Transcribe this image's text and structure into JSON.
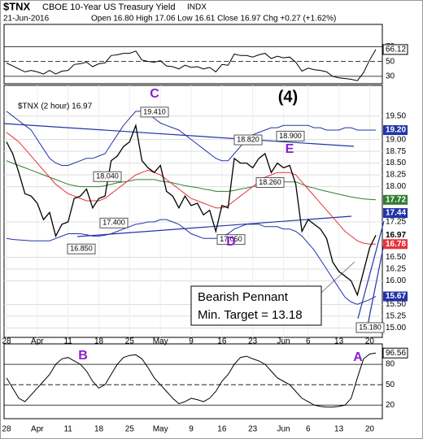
{
  "chart_data": {
    "type": "line",
    "symbol": "$TNX",
    "title": "CBOE 10-Year US Treasury Yield",
    "exchange": "INDX",
    "date": "21-Jun-2016",
    "quote": "Open 16.80  High 17.06  Low 16.61  Close 16.97  Chg +0.27 (+1.62%)",
    "legend_text": "$TNX (2 hour) 16.97",
    "categories": [
      "28",
      null,
      null,
      null,
      null,
      "Apr",
      null,
      null,
      null,
      null,
      "11",
      null,
      null,
      null,
      null,
      "18",
      null,
      null,
      null,
      null,
      "25",
      null,
      null,
      null,
      null,
      "May",
      null,
      null,
      null,
      null,
      "9",
      null,
      null,
      null,
      null,
      "16",
      null,
      null,
      null,
      null,
      "23",
      null,
      null,
      null,
      null,
      "Jun",
      null,
      null,
      null,
      "6",
      null,
      null,
      null,
      null,
      "13",
      null,
      null,
      null,
      null,
      "20",
      null
    ],
    "series": [
      {
        "name": "$TNX",
        "color": "#000000",
        "values": [
          18.95,
          18.7,
          18.3,
          17.85,
          17.8,
          17.65,
          17.3,
          17.45,
          16.95,
          17.2,
          17.25,
          17.75,
          17.8,
          17.95,
          17.55,
          17.75,
          17.8,
          18.55,
          18.65,
          18.85,
          18.95,
          19.3,
          18.55,
          18.4,
          18.3,
          18.45,
          17.9,
          17.8,
          17.55,
          17.8,
          17.6,
          17.65,
          17.4,
          17.5,
          17.05,
          17.6,
          17.55,
          18.6,
          18.5,
          18.5,
          18.4,
          18.6,
          18.7,
          18.3,
          18.5,
          18.4,
          18.45,
          18.05,
          17.05,
          17.3,
          17.2,
          17.1,
          16.9,
          16.4,
          16.2,
          16.1,
          16.0,
          15.7,
          16.2,
          16.7,
          16.97
        ]
      },
      {
        "name": "MA short",
        "color": "#e8313a",
        "values": [
          19.15,
          19.05,
          18.95,
          18.8,
          18.65,
          18.5,
          18.35,
          18.2,
          18.05,
          17.95,
          17.85,
          17.8,
          17.75,
          17.7,
          17.7,
          17.7,
          17.75,
          17.85,
          17.95,
          18.05,
          18.15,
          18.25,
          18.3,
          18.35,
          18.3,
          18.25,
          18.15,
          18.05,
          17.95,
          17.85,
          17.75,
          17.7,
          17.65,
          17.6,
          17.55,
          17.55,
          17.6,
          17.7,
          17.8,
          17.9,
          18.0,
          18.1,
          18.2,
          18.25,
          18.3,
          18.3,
          18.3,
          18.25,
          18.1,
          17.95,
          17.8,
          17.65,
          17.5,
          17.35,
          17.2,
          17.05,
          16.95,
          16.85,
          16.8,
          16.78,
          16.78
        ]
      },
      {
        "name": "MA long",
        "color": "#2e7d32",
        "values": [
          18.55,
          18.5,
          18.45,
          18.4,
          18.35,
          18.3,
          18.25,
          18.2,
          18.15,
          18.1,
          18.05,
          18.02,
          18.0,
          18.0,
          18.0,
          18.0,
          18.02,
          18.05,
          18.08,
          18.1,
          18.12,
          18.15,
          18.15,
          18.15,
          18.15,
          18.12,
          18.1,
          18.08,
          18.05,
          18.02,
          18.0,
          17.98,
          17.95,
          17.93,
          17.9,
          17.9,
          17.9,
          17.92,
          17.95,
          17.97,
          18.0,
          18.02,
          18.05,
          18.07,
          18.08,
          18.1,
          18.1,
          18.1,
          18.05,
          18.0,
          17.97,
          17.93,
          17.9,
          17.87,
          17.84,
          17.81,
          17.78,
          17.76,
          17.74,
          17.73,
          17.72
        ]
      },
      {
        "name": "BB upper",
        "color": "#2233aa",
        "values": [
          19.6,
          19.5,
          19.4,
          19.3,
          19.2,
          19.0,
          18.8,
          18.6,
          18.5,
          18.45,
          18.45,
          18.5,
          18.55,
          18.6,
          18.6,
          18.65,
          18.7,
          18.9,
          19.1,
          19.3,
          19.45,
          19.6,
          19.6,
          19.55,
          19.45,
          19.35,
          19.3,
          19.25,
          19.2,
          19.1,
          19.0,
          18.9,
          18.8,
          18.7,
          18.6,
          18.55,
          18.55,
          18.7,
          18.85,
          19.0,
          19.1,
          19.15,
          19.2,
          19.25,
          19.25,
          19.3,
          19.3,
          19.3,
          19.3,
          19.3,
          19.25,
          19.25,
          19.2,
          19.2,
          19.2,
          19.25,
          19.25,
          19.2,
          19.2,
          19.2,
          19.2
        ]
      },
      {
        "name": "BB lower",
        "color": "#2233aa",
        "values": [
          16.9,
          16.88,
          16.87,
          16.86,
          16.85,
          16.85,
          16.85,
          16.85,
          16.9,
          16.95,
          17.0,
          17.0,
          17.0,
          16.98,
          16.95,
          16.95,
          16.97,
          17.0,
          17.05,
          17.1,
          17.15,
          17.2,
          17.22,
          17.25,
          17.25,
          17.3,
          17.3,
          17.25,
          17.2,
          17.1,
          17.0,
          16.95,
          16.9,
          16.9,
          16.9,
          16.95,
          17.0,
          17.1,
          17.15,
          17.2,
          17.2,
          17.2,
          17.15,
          17.15,
          17.15,
          17.1,
          17.1,
          17.05,
          16.95,
          16.8,
          16.65,
          16.45,
          16.25,
          16.05,
          15.85,
          15.65,
          15.55,
          15.5,
          15.55,
          15.6,
          15.67
        ]
      }
    ],
    "ylim": [
      14.8,
      20.15
    ],
    "yticks": [
      {
        "value": 15,
        "label": "15.00"
      },
      {
        "value": 15.25,
        "label": "15.25"
      },
      {
        "value": 15.5,
        "label": "15.50"
      },
      {
        "value": 16,
        "label": "16.00"
      },
      {
        "value": 16.25,
        "label": "16.25"
      },
      {
        "value": 16.5,
        "label": "16.50"
      },
      {
        "value": 17.25,
        "label": "17.25"
      },
      {
        "value": 18,
        "label": "18.00"
      },
      {
        "value": 18.25,
        "label": "18.25"
      },
      {
        "value": 18.5,
        "label": "18.50"
      },
      {
        "value": 18.75,
        "label": "18.75"
      },
      {
        "value": 19,
        "label": "19.00"
      },
      {
        "value": 19.5,
        "label": "19.50"
      }
    ],
    "grid": true,
    "axis_labels": [
      {
        "value": 19.2,
        "label": "19.20",
        "color": "#2233aa"
      },
      {
        "value": 17.72,
        "label": "17.72",
        "color": "#2e7d32"
      },
      {
        "value": 17.44,
        "label": "17.44",
        "color": "#2233aa"
      },
      {
        "value": 16.97,
        "label": "16.97",
        "color": "#000000"
      },
      {
        "value": 16.78,
        "label": "16.78",
        "color": "#e8313a"
      },
      {
        "value": 15.67,
        "label": "15.67",
        "color": "#2233aa"
      }
    ],
    "price_labels": [
      {
        "value": 19.41,
        "label": "19.410"
      },
      {
        "value": 18.82,
        "label": "18.820"
      },
      {
        "value": 18.9,
        "label": "18.900"
      },
      {
        "value": 18.04,
        "label": "18.040"
      },
      {
        "value": 18.26,
        "label": "18.260"
      },
      {
        "value": 17.4,
        "label": "17.400"
      },
      {
        "value": 17.05,
        "label": "17.050"
      },
      {
        "value": 16.85,
        "label": "16.850"
      },
      {
        "value": 15.18,
        "label": "15.180"
      }
    ],
    "wave_labels": [
      "(4)",
      "C",
      "D",
      "E",
      "B",
      "A"
    ],
    "annotation": [
      "Bearish Pennant",
      "Min. Target = 13.18"
    ],
    "top_panel": {
      "color": "#000000",
      "values": [
        48,
        44,
        40,
        36,
        38,
        36,
        33,
        38,
        33,
        37,
        38,
        46,
        47,
        49,
        43,
        47,
        48,
        58,
        59,
        61,
        61,
        64,
        52,
        50,
        49,
        51,
        44,
        43,
        40,
        45,
        42,
        43,
        40,
        42,
        36,
        46,
        45,
        60,
        58,
        58,
        56,
        59,
        61,
        54,
        57,
        55,
        56,
        49,
        37,
        41,
        39,
        38,
        36,
        30,
        28,
        27,
        26,
        24,
        35,
        52,
        66.12
      ],
      "ylim": [
        20,
        100
      ],
      "yticks": [
        30,
        50,
        70
      ]
    },
    "bottom_panel": {
      "color": "#000000",
      "values": [
        60,
        45,
        30,
        25,
        35,
        45,
        55,
        65,
        80,
        88,
        90,
        85,
        80,
        70,
        55,
        45,
        50,
        65,
        80,
        90,
        93,
        94,
        88,
        75,
        60,
        50,
        40,
        30,
        22,
        25,
        30,
        28,
        25,
        30,
        40,
        55,
        65,
        80,
        90,
        92,
        88,
        85,
        80,
        70,
        60,
        55,
        50,
        40,
        30,
        25,
        20,
        18,
        17,
        17,
        18,
        20,
        30,
        60,
        88,
        95,
        96.56
      ],
      "ylim": [
        0,
        110
      ],
      "yticks": [
        20,
        50,
        80
      ]
    }
  }
}
